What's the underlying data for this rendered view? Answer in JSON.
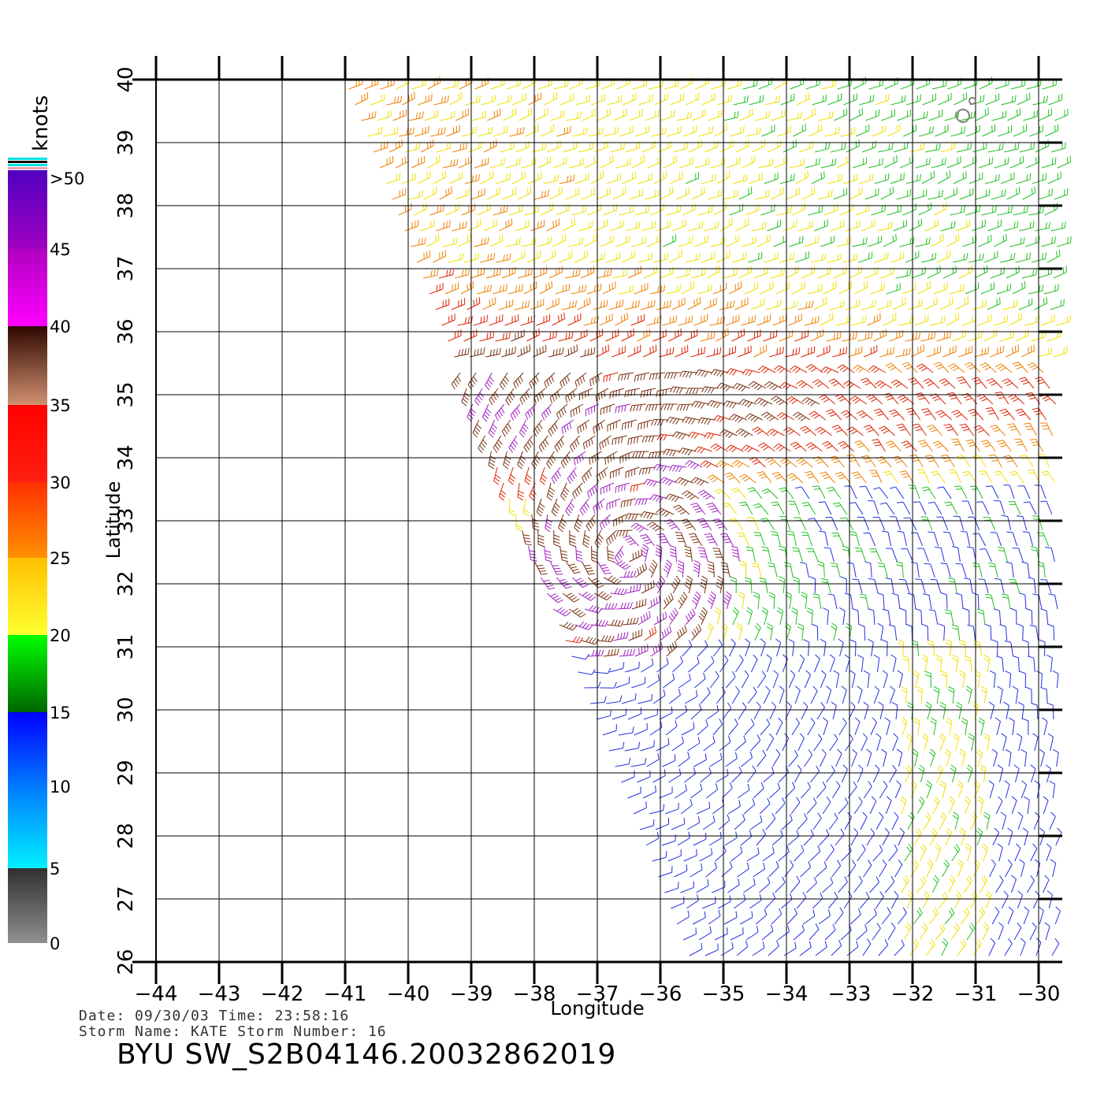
{
  "map": {
    "xlabel": "Longitude",
    "ylabel": "Latitude",
    "lon_ticks": [
      "-44",
      "-43",
      "-42",
      "-41",
      "-40",
      "-39",
      "-38",
      "-37",
      "-36",
      "-35",
      "-34",
      "-33",
      "-32",
      "-31",
      "-30"
    ],
    "lat_ticks": [
      "26",
      "27",
      "28",
      "29",
      "30",
      "31",
      "32",
      "33",
      "34",
      "35",
      "36",
      "37",
      "38",
      "39",
      "40"
    ],
    "lon_range": [
      -44,
      -30
    ],
    "lat_range": [
      26,
      40
    ],
    "storm_center": {
      "lon": -36.5,
      "lat": 32.5
    },
    "swath_edge_lon_top": -41,
    "swath_edge_lon_bottom": -35.5,
    "grid": true
  },
  "colorbar": {
    "title": "knots",
    "levels": [
      {
        "label": "0",
        "value": 0
      },
      {
        "label": "5",
        "value": 5
      },
      {
        "label": "10",
        "value": 10
      },
      {
        "label": "15",
        "value": 15
      },
      {
        "label": "20",
        "value": 20
      },
      {
        "label": "25",
        "value": 25
      },
      {
        "label": "30",
        "value": 30
      },
      {
        "label": "35",
        "value": 35
      },
      {
        "label": "40",
        "value": 40
      },
      {
        "label": "45",
        "value": 45
      },
      {
        "label": ">50",
        "value": 50
      }
    ],
    "colors": {
      "gray_dark": "#3a3a3a",
      "gray_light": "#8a8a8a",
      "cyan": "#00e8ff",
      "blue_light": "#0090ff",
      "blue": "#0000ff",
      "green_dark": "#007000",
      "green": "#00ff00",
      "yellow": "#ffff30",
      "yellow_orange": "#ffc000",
      "orange": "#ff7a00",
      "red_orange": "#ff3000",
      "red": "#ff0000",
      "brown_light": "#c07850",
      "brown_dark": "#3a1400",
      "magenta": "#ff00ff",
      "purple": "#8000cc",
      "violet": "#5000c0"
    }
  },
  "wind_colors": {
    "5_15": "#2030e0",
    "15_20": "#20c020",
    "20_25": "#f0e000",
    "25_30": "#f08000",
    "30_35": "#e02000",
    "35_40": "#7a3010",
    "40_50": "#a020c0"
  },
  "meta": {
    "date_line": "Date: 09/30/03   Time: 23:58:16",
    "storm_line": "Storm Name: KATE   Storm Number: 16"
  },
  "title": "BYU SW_S2B04146.20032862019"
}
